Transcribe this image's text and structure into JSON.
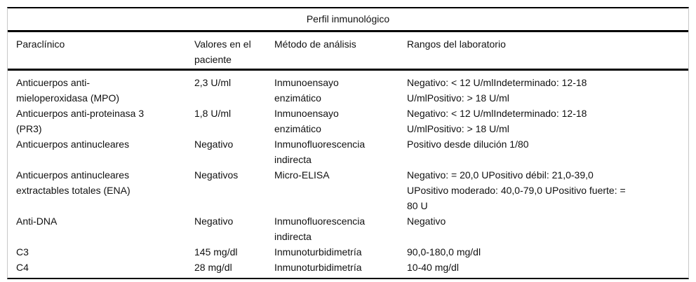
{
  "table": {
    "title": "Perfil inmunológico",
    "columns": [
      "Paraclínico",
      "Valores en el paciente",
      "Método de análisis",
      "Rangos del laboratorio"
    ],
    "rows": [
      {
        "paraclinico": "Anticuerpos anti-\nmieloperoxidasa (MPO)",
        "valor": "2,3 U/ml",
        "metodo": "Inmunoensayo\nenzimático",
        "rango": "Negativo: < 12 U/mlIndeterminado: 12-18\nU/mlPositivo: > 18 U/ml"
      },
      {
        "paraclinico": "Anticuerpos anti-proteinasa 3\n(PR3)",
        "valor": "1,8 U/ml",
        "metodo": "Inmunoensayo\nenzimático",
        "rango": "Negativo: < 12 U/mlIndeterminado: 12-18\nU/mlPositivo: > 18 U/ml"
      },
      {
        "paraclinico": "Anticuerpos antinucleares",
        "valor": "Negativo",
        "metodo": "Inmunofluorescencia\nindirecta",
        "rango": "Positivo desde dilución 1/80"
      },
      {
        "paraclinico": "Anticuerpos antinucleares\nextractables totales (ENA)",
        "valor": "Negativos",
        "metodo": "Micro-ELISA",
        "rango": "Negativo: = 20,0 UPositivo débil: 21,0-39,0\nUPositivo moderado: 40,0-79,0 UPositivo fuerte: =\n80 U"
      },
      {
        "paraclinico": "Anti-DNA",
        "valor": "Negativo",
        "metodo": "Inmunofluorescencia\nindirecta",
        "rango": "Negativo"
      },
      {
        "paraclinico": "C3",
        "valor": "145 mg/dl",
        "metodo": "Inmunoturbidimetría",
        "rango": "90,0-180,0 mg/dl"
      },
      {
        "paraclinico": "C4",
        "valor": "28 mg/dl",
        "metodo": "Inmunoturbidimetría",
        "rango": "10-40 mg/dl"
      }
    ],
    "colors": {
      "rule": "#000000",
      "side_border": "#c8c8c8",
      "text": "#111111"
    }
  }
}
